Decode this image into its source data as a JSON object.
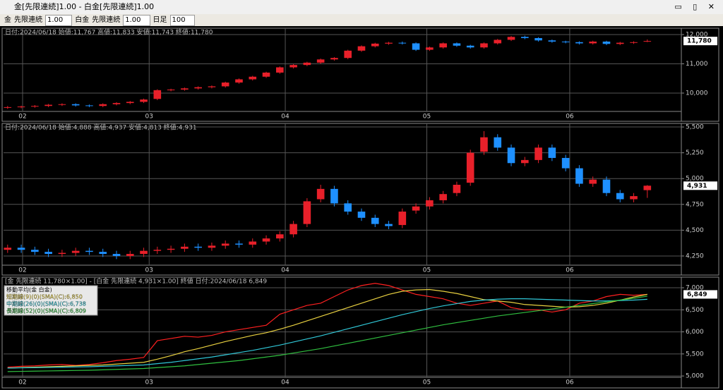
{
  "window": {
    "title": "金[先限連続]1.00 - 白金[先限連続]1.00"
  },
  "toolbar": {
    "items": [
      "金",
      "先限連続",
      "1.00",
      "白金",
      "先限連続",
      "1.00",
      "日足",
      "100"
    ]
  },
  "chart_data": [
    {
      "type": "candlestick",
      "info": "日付:2024/06/18 始値:11,767 高値:11,833 安値:11,743 終値:11,780",
      "last_label": "11,780",
      "up_color": "#e8202a",
      "down_color": "#1e90ff",
      "grid": true,
      "xlim": [
        -0.3,
        49.5
      ],
      "xticks": [
        {
          "value": 1.1,
          "label": "02"
        },
        {
          "value": 10.4,
          "label": "03"
        },
        {
          "value": 20.4,
          "label": "04"
        },
        {
          "value": 30.8,
          "label": "05"
        },
        {
          "value": 41.3,
          "label": "06"
        }
      ],
      "ylim": [
        9373,
        12217
      ],
      "yticks": [
        {
          "value": 10000,
          "label": "10,000"
        },
        {
          "value": 11000,
          "label": "11,000"
        },
        {
          "value": 12000,
          "label": "12,000"
        }
      ],
      "open": [
        9500,
        9520,
        9540,
        9560,
        9600,
        9620,
        9580,
        9560,
        9620,
        9660,
        9700,
        9800,
        10100,
        10120,
        10160,
        10200,
        10230,
        10360,
        10470,
        10560,
        10700,
        10880,
        10960,
        11040,
        11150,
        11200,
        11450,
        11600,
        11690,
        11720,
        11700,
        11480,
        11560,
        11700,
        11620,
        11560,
        11700,
        11820,
        11920,
        11880,
        11800,
        11760,
        11740,
        11700,
        11760,
        11680,
        11720,
        11767
      ],
      "high": [
        9560,
        9570,
        9590,
        9630,
        9650,
        9650,
        9610,
        9650,
        9690,
        9730,
        9810,
        10130,
        10150,
        10190,
        10230,
        10260,
        10390,
        10500,
        10590,
        10730,
        10910,
        10990,
        11070,
        11180,
        11230,
        11480,
        11630,
        11720,
        11750,
        11760,
        11730,
        11590,
        11730,
        11730,
        11650,
        11730,
        11850,
        11950,
        11960,
        11910,
        11830,
        11790,
        11770,
        11790,
        11790,
        11750,
        11770,
        11833
      ],
      "low": [
        9460,
        9480,
        9500,
        9520,
        9560,
        9540,
        9520,
        9520,
        9580,
        9620,
        9660,
        9760,
        10060,
        10080,
        10120,
        10160,
        10190,
        10320,
        10430,
        10520,
        10660,
        10840,
        10920,
        11000,
        11110,
        11160,
        11410,
        11560,
        11650,
        11660,
        11440,
        11440,
        11520,
        11580,
        11520,
        11520,
        11660,
        11780,
        11840,
        11760,
        11720,
        11700,
        11660,
        11660,
        11640,
        11640,
        11680,
        11743
      ],
      "close": [
        9520,
        9540,
        9560,
        9600,
        9620,
        9580,
        9560,
        9620,
        9660,
        9700,
        9780,
        10100,
        10120,
        10160,
        10200,
        10230,
        10360,
        10470,
        10560,
        10700,
        10880,
        10960,
        11040,
        11150,
        11200,
        11450,
        11600,
        11690,
        11720,
        11700,
        11480,
        11560,
        11700,
        11620,
        11560,
        11700,
        11820,
        11920,
        11880,
        11800,
        11760,
        11740,
        11700,
        11760,
        11680,
        11720,
        11740,
        11780
      ]
    },
    {
      "type": "candlestick",
      "info": "日付:2024/06/18 始値:4,888 高値:4,937 安値:4,813 終値:4,931",
      "last_label": "4,931",
      "up_color": "#e8202a",
      "down_color": "#1e90ff",
      "grid": true,
      "xlim": [
        -0.3,
        49.5
      ],
      "xticks": [
        {
          "value": 1.1,
          "label": "02"
        },
        {
          "value": 10.4,
          "label": "03"
        },
        {
          "value": 20.4,
          "label": "04"
        },
        {
          "value": 30.8,
          "label": "05"
        },
        {
          "value": 41.3,
          "label": "06"
        }
      ],
      "ylim": [
        4161,
        5514
      ],
      "yticks": [
        {
          "value": 4250,
          "label": "4,250"
        },
        {
          "value": 4500,
          "label": "4,500"
        },
        {
          "value": 4750,
          "label": "4,750"
        },
        {
          "value": 5000,
          "label": "5,000"
        },
        {
          "value": 5250,
          "label": "5,250"
        },
        {
          "value": 5500,
          "label": "5,500"
        }
      ],
      "open": [
        4310,
        4330,
        4310,
        4290,
        4270,
        4280,
        4300,
        4290,
        4270,
        4250,
        4270,
        4300,
        4310,
        4320,
        4340,
        4330,
        4350,
        4370,
        4360,
        4390,
        4420,
        4460,
        4560,
        4800,
        4900,
        4760,
        4680,
        4620,
        4560,
        4550,
        4690,
        4730,
        4790,
        4860,
        4960,
        5260,
        5400,
        5300,
        5150,
        5180,
        5300,
        5200,
        5100,
        4950,
        4990,
        4860,
        4800,
        4888
      ],
      "high": [
        4360,
        4360,
        4340,
        4320,
        4310,
        4330,
        4330,
        4320,
        4300,
        4300,
        4330,
        4340,
        4350,
        4370,
        4370,
        4380,
        4400,
        4400,
        4420,
        4450,
        4490,
        4590,
        4810,
        4940,
        4930,
        4790,
        4710,
        4650,
        4590,
        4710,
        4760,
        4820,
        4880,
        4970,
        5280,
        5460,
        5430,
        5330,
        5210,
        5330,
        5330,
        5230,
        5130,
        5020,
        5020,
        4890,
        4860,
        4937
      ],
      "low": [
        4280,
        4280,
        4260,
        4240,
        4240,
        4250,
        4260,
        4240,
        4220,
        4220,
        4240,
        4270,
        4280,
        4290,
        4300,
        4300,
        4320,
        4330,
        4330,
        4360,
        4390,
        4430,
        4530,
        4770,
        4730,
        4650,
        4590,
        4530,
        4510,
        4520,
        4660,
        4700,
        4760,
        4830,
        4930,
        5230,
        5270,
        5120,
        5120,
        5150,
        5170,
        5070,
        4920,
        4920,
        4830,
        4770,
        4770,
        4813
      ],
      "close": [
        4330,
        4310,
        4290,
        4270,
        4280,
        4300,
        4290,
        4270,
        4250,
        4270,
        4300,
        4310,
        4320,
        4340,
        4330,
        4350,
        4370,
        4360,
        4390,
        4420,
        4460,
        4560,
        4780,
        4900,
        4760,
        4680,
        4620,
        4560,
        4540,
        4680,
        4730,
        4790,
        4850,
        4940,
        5250,
        5400,
        5300,
        5150,
        5180,
        5300,
        5200,
        5100,
        4950,
        4990,
        4860,
        4800,
        4830,
        4931
      ]
    },
    {
      "type": "line",
      "info": "[金 先限連続 11,780×1.00] - [白金 先限連続 4,931×1.00] 終値 日付:2024/06/18 6,849",
      "legend_title": "移動平均(金 白金)",
      "last_label": "6,849",
      "grid": true,
      "xlim": [
        -0.3,
        49.5
      ],
      "xticks": [
        {
          "value": 1.1,
          "label": "02"
        },
        {
          "value": 10.4,
          "label": "03"
        },
        {
          "value": 20.4,
          "label": "04"
        },
        {
          "value": 30.8,
          "label": "05"
        },
        {
          "value": 41.3,
          "label": "06"
        }
      ],
      "ylim": [
        4970,
        7176
      ],
      "yticks": [
        {
          "value": 5000,
          "label": "5,000"
        },
        {
          "value": 5500,
          "label": "5,500"
        },
        {
          "value": 6000,
          "label": "6,000"
        },
        {
          "value": 6500,
          "label": "6,500"
        },
        {
          "value": 7000,
          "label": "7,000"
        }
      ],
      "series": [
        {
          "color": "#ff2020",
          "values": [
            5200,
            5220,
            5230,
            5250,
            5260,
            5240,
            5260,
            5300,
            5350,
            5380,
            5420,
            5800,
            5850,
            5900,
            5880,
            5920,
            6000,
            6050,
            6100,
            6150,
            6400,
            6500,
            6600,
            6650,
            6800,
            6950,
            7050,
            7100,
            7050,
            6950,
            6850,
            6800,
            6750,
            6650,
            6600,
            6650,
            6700,
            6550,
            6500,
            6500,
            6450,
            6500,
            6650,
            6700,
            6800,
            6850,
            6830,
            6849
          ]
        },
        {
          "name": "短期線(9)(0)(SMA)(C):6,850",
          "color": "#e8d040",
          "values": [
            5180,
            5190,
            5200,
            5210,
            5220,
            5230,
            5240,
            5250,
            5270,
            5290,
            5310,
            5380,
            5460,
            5550,
            5620,
            5700,
            5780,
            5850,
            5920,
            5980,
            6060,
            6150,
            6250,
            6350,
            6450,
            6550,
            6650,
            6750,
            6850,
            6920,
            6950,
            6960,
            6920,
            6870,
            6800,
            6730,
            6700,
            6670,
            6620,
            6600,
            6580,
            6560,
            6570,
            6600,
            6650,
            6720,
            6790,
            6850
          ]
        },
        {
          "name": "中期線(26)(0)(SMA)(C):6,738",
          "color": "#30c8d8",
          "values": [
            5180,
            5185,
            5190,
            5195,
            5200,
            5205,
            5210,
            5220,
            5230,
            5240,
            5250,
            5280,
            5310,
            5350,
            5390,
            5430,
            5480,
            5530,
            5580,
            5640,
            5700,
            5770,
            5840,
            5910,
            5990,
            6070,
            6150,
            6230,
            6310,
            6390,
            6460,
            6530,
            6590,
            6640,
            6690,
            6720,
            6740,
            6750,
            6750,
            6740,
            6730,
            6720,
            6710,
            6700,
            6700,
            6710,
            6720,
            6738
          ]
        },
        {
          "name": "長期線(52)(0)(SMA)(C):6,809",
          "color": "#30c040",
          "values": [
            5100,
            5105,
            5110,
            5115,
            5120,
            5125,
            5130,
            5140,
            5150,
            5160,
            5170,
            5190,
            5210,
            5230,
            5260,
            5290,
            5320,
            5350,
            5390,
            5430,
            5470,
            5520,
            5570,
            5620,
            5680,
            5740,
            5800,
            5860,
            5920,
            5980,
            6040,
            6100,
            6160,
            6210,
            6260,
            6310,
            6360,
            6400,
            6440,
            6480,
            6520,
            6560,
            6600,
            6640,
            6680,
            6720,
            6760,
            6809
          ]
        }
      ]
    }
  ]
}
